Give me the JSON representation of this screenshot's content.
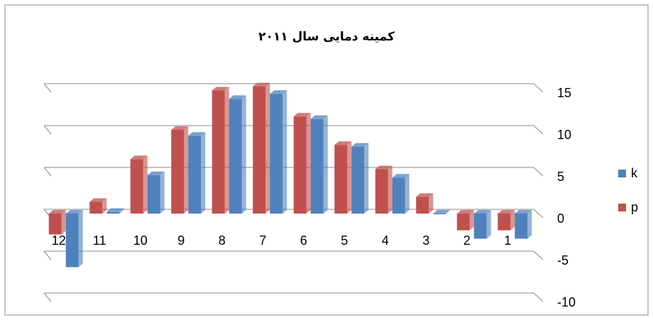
{
  "chart_data": {
    "type": "bar",
    "title": "کمینه دمایی سال ۲۰۱۱",
    "categories": [
      "1",
      "2",
      "3",
      "4",
      "5",
      "6",
      "7",
      "8",
      "9",
      "10",
      "11",
      "12"
    ],
    "x_reversed": true,
    "series": [
      {
        "name": "k",
        "color": "#4f81bd",
        "values": [
          -3,
          -3,
          0,
          4.3,
          8,
          11.3,
          14.3,
          13.7,
          9.3,
          4.6,
          0.2,
          -6.4
        ]
      },
      {
        "name": "p",
        "color": "#c0504d",
        "values": [
          -2,
          -2,
          2,
          5.3,
          8.2,
          11.6,
          15.2,
          14.7,
          10,
          6.5,
          1.4,
          -2.5
        ]
      }
    ],
    "ylim": [
      -10,
      15
    ],
    "yticks": [
      -10,
      -5,
      0,
      5,
      10,
      15
    ],
    "grid": true,
    "legend": "right"
  }
}
